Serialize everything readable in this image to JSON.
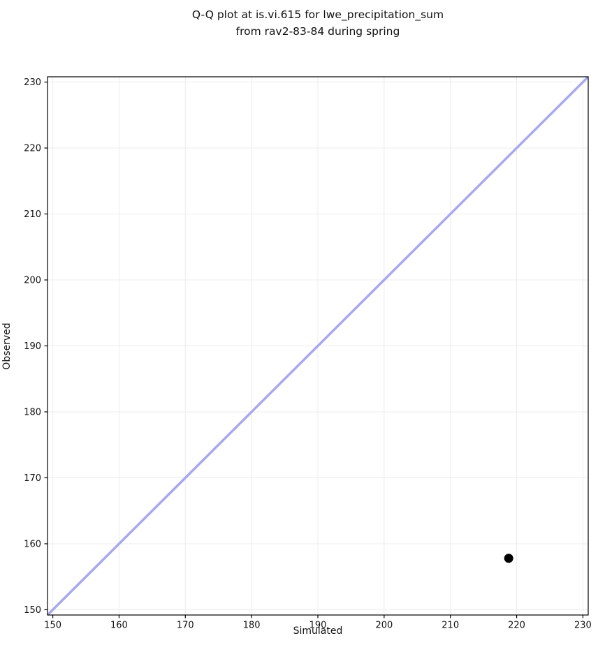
{
  "chart_data": {
    "type": "scatter",
    "title": "Q-Q plot at is.vi.615 for lwe_precipitation_sum\nfrom rav2-83-84 during spring",
    "xlabel": "Simulated",
    "ylabel": "Observed",
    "xlim": [
      149.2,
      230.8
    ],
    "ylim": [
      149.2,
      230.8
    ],
    "xticks": [
      150,
      160,
      170,
      180,
      190,
      200,
      210,
      220,
      230
    ],
    "yticks": [
      150,
      160,
      170,
      180,
      190,
      200,
      210,
      220,
      230
    ],
    "grid": true,
    "legend": "none",
    "points": [
      {
        "x": 218.8,
        "y": 157.8
      }
    ],
    "reference_line": {
      "kind": "identity",
      "from": 149.2,
      "to": 230.8,
      "color": "#a8a8f0",
      "width": 3.5
    },
    "point_style": {
      "color": "#000000",
      "radius": 6.5
    },
    "grid_color": "#ececec",
    "spine_color": "#000000",
    "tick_label_color": "#111111",
    "background_color": "#ffffff"
  }
}
